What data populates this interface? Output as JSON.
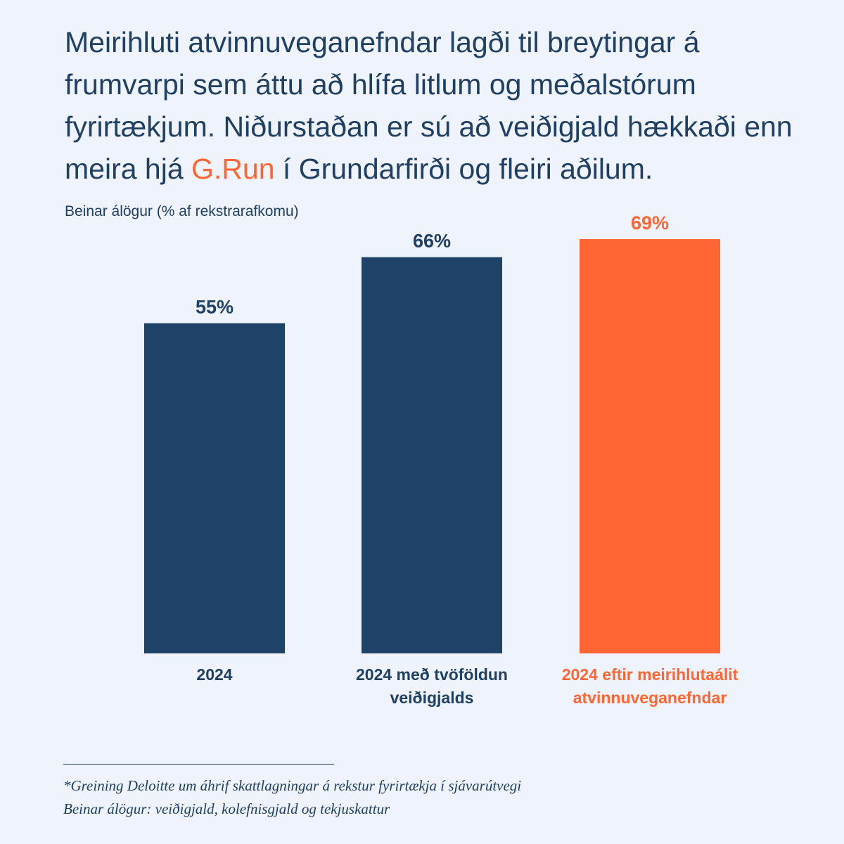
{
  "title": {
    "before": "Meirihluti atvinnuveganefndar lagði til breytingar á frumvarpi sem áttu að hlífa litlum og meðalstórum fyrirtækjum. Niðurstaðan er sú að veiðigjald hækkaði enn meira hjá ",
    "highlight": "G.Run",
    "after": " í Grundarfirði og fleiri aðilum."
  },
  "colors": {
    "background": "#eff3fb",
    "navy": "#1f4269",
    "orange": "#ff6633",
    "text": "#1f3f63"
  },
  "chart_data": {
    "type": "bar",
    "title": "",
    "ylabel": "Beinar álögur (% af rekstrarafkomu)",
    "xlabel": "",
    "unit": "%",
    "ylim": [
      0,
      69
    ],
    "grid": false,
    "categories": [
      "2024",
      "2024 með tvöföldun veiðigjalds",
      "2024 eftir meirihlutaálit atvinnuveganefndar"
    ],
    "category_lines": [
      [
        "2024"
      ],
      [
        "2024 með tvöföldun",
        "veiðigjalds"
      ],
      [
        "2024 eftir meirihlutaálit",
        "atvinnuveganefndar"
      ]
    ],
    "values": [
      55,
      66,
      69
    ],
    "value_labels": [
      "55%",
      "66%",
      "69%"
    ],
    "bar_colors": [
      "#1f4269",
      "#1f4269",
      "#ff6633"
    ],
    "label_colors": [
      "#1f3f63",
      "#1f3f63",
      "#ff6633"
    ]
  },
  "footnotes": [
    "*Greining Deloitte um áhrif skattlagningar á rekstur fyrirtækja í sjávarútvegi",
    "Beinar álögur: veiðigjald, kolefnisgjald og tekjuskattur"
  ]
}
